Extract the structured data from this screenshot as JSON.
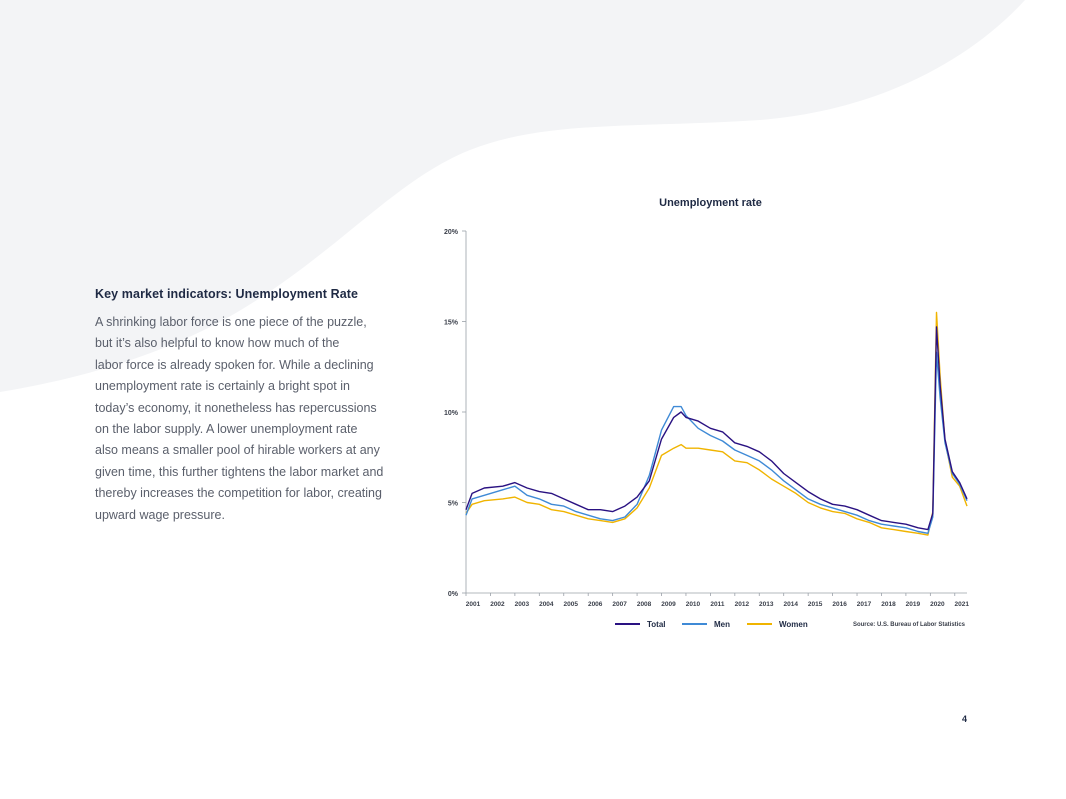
{
  "colors": {
    "background": "#ffffff",
    "wave": "#f3f4f6",
    "heading": "#1f2a44",
    "body": "#5a5f6b"
  },
  "section": {
    "title": "Key market indicators: Unemployment Rate",
    "lines": [
      "A shrinking labor force is one piece of the puzzle,",
      "but it’s also helpful to know how much of the",
      "labor force is already spoken for. While a declining",
      "unemployment rate is certainly a bright spot in",
      "today’s economy, it nonetheless has repercussions",
      "on the labor supply. A lower unemployment rate",
      "also means a smaller pool of hirable workers at any",
      "given time, this further tightens the labor market and",
      "thereby increases the competition for labor, creating",
      "upward wage pressure."
    ]
  },
  "page_number": "4",
  "chart_data": {
    "type": "line",
    "title": "Unemployment rate",
    "xlabel": "",
    "ylabel": "",
    "x_ticks": [
      "2001",
      "2002",
      "2003",
      "2004",
      "2005",
      "2006",
      "2007",
      "2008",
      "2009",
      "2010",
      "2011",
      "2012",
      "2013",
      "2014",
      "2015",
      "2016",
      "2017",
      "2018",
      "2019",
      "2020",
      "2021"
    ],
    "xlim": [
      2001.0,
      2021.5
    ],
    "y_ticks": [
      0,
      5,
      10,
      15,
      20
    ],
    "y_tick_labels": [
      "0%",
      "5%",
      "10%",
      "15%",
      "20%"
    ],
    "ylim": [
      0,
      20
    ],
    "grid": false,
    "legend_position": "bottom",
    "source": "Source: U.S. Bureau of Labor Statistics",
    "series": [
      {
        "name": "Total",
        "color": "#2a1282",
        "points": [
          [
            2001.0,
            4.6
          ],
          [
            2001.25,
            5.5
          ],
          [
            2001.75,
            5.8
          ],
          [
            2002.5,
            5.9
          ],
          [
            2003.0,
            6.1
          ],
          [
            2003.5,
            5.8
          ],
          [
            2004.0,
            5.6
          ],
          [
            2004.5,
            5.5
          ],
          [
            2005.0,
            5.2
          ],
          [
            2005.5,
            4.9
          ],
          [
            2006.0,
            4.6
          ],
          [
            2006.5,
            4.6
          ],
          [
            2007.0,
            4.5
          ],
          [
            2007.5,
            4.8
          ],
          [
            2008.0,
            5.3
          ],
          [
            2008.5,
            6.2
          ],
          [
            2009.0,
            8.5
          ],
          [
            2009.5,
            9.7
          ],
          [
            2009.8,
            10.0
          ],
          [
            2010.0,
            9.7
          ],
          [
            2010.5,
            9.5
          ],
          [
            2011.0,
            9.1
          ],
          [
            2011.5,
            8.9
          ],
          [
            2012.0,
            8.3
          ],
          [
            2012.5,
            8.1
          ],
          [
            2013.0,
            7.8
          ],
          [
            2013.5,
            7.3
          ],
          [
            2014.0,
            6.6
          ],
          [
            2014.5,
            6.1
          ],
          [
            2015.0,
            5.6
          ],
          [
            2015.5,
            5.2
          ],
          [
            2016.0,
            4.9
          ],
          [
            2016.5,
            4.8
          ],
          [
            2017.0,
            4.6
          ],
          [
            2017.5,
            4.3
          ],
          [
            2018.0,
            4.0
          ],
          [
            2018.5,
            3.9
          ],
          [
            2019.0,
            3.8
          ],
          [
            2019.5,
            3.6
          ],
          [
            2019.9,
            3.5
          ],
          [
            2020.1,
            4.4
          ],
          [
            2020.25,
            14.7
          ],
          [
            2020.4,
            11.5
          ],
          [
            2020.6,
            8.5
          ],
          [
            2020.9,
            6.7
          ],
          [
            2021.2,
            6.1
          ],
          [
            2021.5,
            5.2
          ]
        ]
      },
      {
        "name": "Men",
        "color": "#3f8ad6",
        "points": [
          [
            2001.0,
            4.3
          ],
          [
            2001.25,
            5.2
          ],
          [
            2001.75,
            5.4
          ],
          [
            2002.5,
            5.7
          ],
          [
            2003.0,
            5.9
          ],
          [
            2003.5,
            5.4
          ],
          [
            2004.0,
            5.2
          ],
          [
            2004.5,
            4.9
          ],
          [
            2005.0,
            4.8
          ],
          [
            2005.5,
            4.5
          ],
          [
            2006.0,
            4.3
          ],
          [
            2006.5,
            4.1
          ],
          [
            2007.0,
            4.0
          ],
          [
            2007.5,
            4.2
          ],
          [
            2008.0,
            4.9
          ],
          [
            2008.5,
            6.5
          ],
          [
            2009.0,
            9.0
          ],
          [
            2009.5,
            10.3
          ],
          [
            2009.8,
            10.3
          ],
          [
            2010.0,
            9.8
          ],
          [
            2010.5,
            9.1
          ],
          [
            2011.0,
            8.7
          ],
          [
            2011.5,
            8.4
          ],
          [
            2012.0,
            7.9
          ],
          [
            2012.5,
            7.6
          ],
          [
            2013.0,
            7.3
          ],
          [
            2013.5,
            6.8
          ],
          [
            2014.0,
            6.2
          ],
          [
            2014.5,
            5.7
          ],
          [
            2015.0,
            5.2
          ],
          [
            2015.5,
            4.9
          ],
          [
            2016.0,
            4.7
          ],
          [
            2016.5,
            4.5
          ],
          [
            2017.0,
            4.3
          ],
          [
            2017.5,
            4.0
          ],
          [
            2018.0,
            3.8
          ],
          [
            2018.5,
            3.7
          ],
          [
            2019.0,
            3.6
          ],
          [
            2019.5,
            3.4
          ],
          [
            2019.9,
            3.3
          ],
          [
            2020.1,
            4.2
          ],
          [
            2020.25,
            13.3
          ],
          [
            2020.4,
            10.8
          ],
          [
            2020.6,
            8.3
          ],
          [
            2020.9,
            6.6
          ],
          [
            2021.2,
            6.0
          ],
          [
            2021.5,
            5.1
          ]
        ]
      },
      {
        "name": "Women",
        "color": "#f0b400",
        "points": [
          [
            2001.0,
            4.4
          ],
          [
            2001.25,
            4.9
          ],
          [
            2001.75,
            5.1
          ],
          [
            2002.5,
            5.2
          ],
          [
            2003.0,
            5.3
          ],
          [
            2003.5,
            5.0
          ],
          [
            2004.0,
            4.9
          ],
          [
            2004.5,
            4.6
          ],
          [
            2005.0,
            4.5
          ],
          [
            2005.5,
            4.3
          ],
          [
            2006.0,
            4.1
          ],
          [
            2006.5,
            4.0
          ],
          [
            2007.0,
            3.9
          ],
          [
            2007.5,
            4.1
          ],
          [
            2008.0,
            4.7
          ],
          [
            2008.5,
            5.8
          ],
          [
            2009.0,
            7.6
          ],
          [
            2009.5,
            8.0
          ],
          [
            2009.8,
            8.2
          ],
          [
            2010.0,
            8.0
          ],
          [
            2010.5,
            8.0
          ],
          [
            2011.0,
            7.9
          ],
          [
            2011.5,
            7.8
          ],
          [
            2012.0,
            7.3
          ],
          [
            2012.5,
            7.2
          ],
          [
            2013.0,
            6.8
          ],
          [
            2013.5,
            6.3
          ],
          [
            2014.0,
            5.9
          ],
          [
            2014.5,
            5.5
          ],
          [
            2015.0,
            5.0
          ],
          [
            2015.5,
            4.7
          ],
          [
            2016.0,
            4.5
          ],
          [
            2016.5,
            4.4
          ],
          [
            2017.0,
            4.1
          ],
          [
            2017.5,
            3.9
          ],
          [
            2018.0,
            3.6
          ],
          [
            2018.5,
            3.5
          ],
          [
            2019.0,
            3.4
          ],
          [
            2019.5,
            3.3
          ],
          [
            2019.9,
            3.2
          ],
          [
            2020.1,
            4.5
          ],
          [
            2020.25,
            15.5
          ],
          [
            2020.4,
            12.0
          ],
          [
            2020.6,
            8.4
          ],
          [
            2020.9,
            6.4
          ],
          [
            2021.2,
            5.9
          ],
          [
            2021.5,
            4.8
          ]
        ]
      }
    ]
  }
}
